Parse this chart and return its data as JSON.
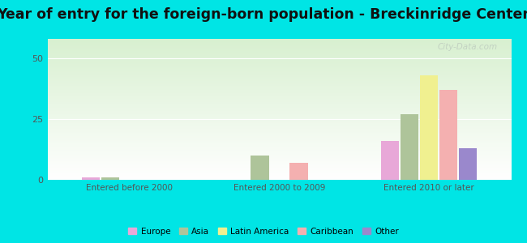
{
  "title": "Year of entry for the foreign-born population - Breckinridge Center",
  "categories": [
    "Entered before 2000",
    "Entered 2000 to 2009",
    "Entered 2010 or later"
  ],
  "series": {
    "Europe": [
      1,
      0,
      16
    ],
    "Asia": [
      1,
      10,
      27
    ],
    "Latin America": [
      0,
      0,
      43
    ],
    "Caribbean": [
      0,
      7,
      37
    ],
    "Other": [
      0,
      0,
      13
    ]
  },
  "colors": {
    "Europe": "#e8a8d8",
    "Asia": "#aec49a",
    "Latin America": "#f0f090",
    "Caribbean": "#f4b0b0",
    "Other": "#9a88cc"
  },
  "ylim": [
    0,
    58
  ],
  "yticks": [
    0,
    25,
    50
  ],
  "background_color": "#00e5e5",
  "title_fontsize": 12.5,
  "bar_width": 0.13,
  "watermark": "City-Data.com"
}
